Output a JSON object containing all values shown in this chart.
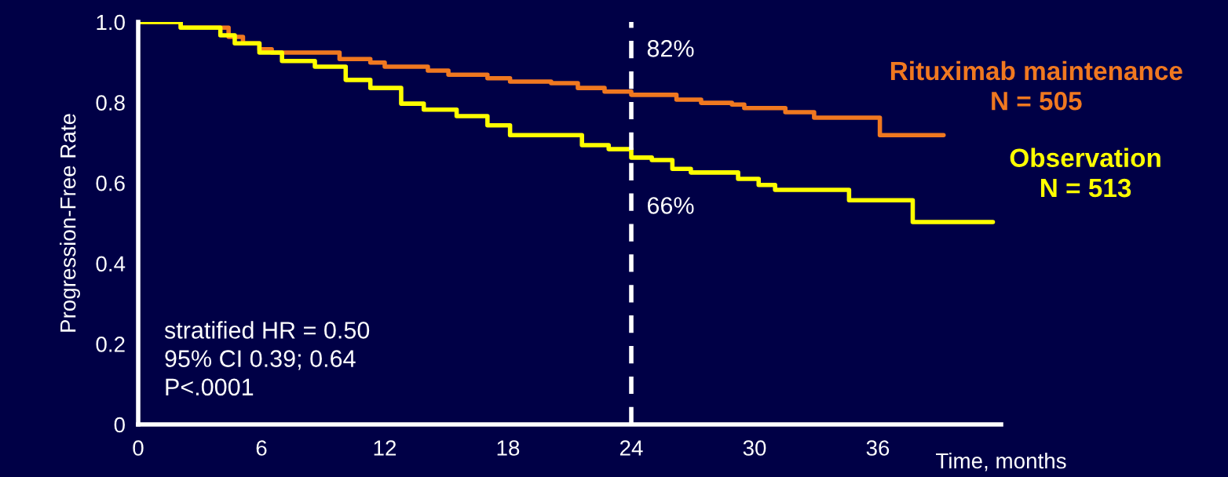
{
  "chart_data": {
    "type": "step",
    "xlabel": "Time, months",
    "ylabel": "Progression-Free Rate",
    "xlim": [
      0,
      42
    ],
    "xticks": [
      0,
      6,
      12,
      18,
      24,
      30,
      36
    ],
    "ylim": [
      0,
      1
    ],
    "yticks": [
      {
        "value": 0,
        "label": "0"
      },
      0.2,
      0.4,
      0.6,
      0.8,
      {
        "value": 1,
        "label": "1.0"
      }
    ],
    "grid": false,
    "legend": false,
    "series": [
      {
        "name": "Rituximab maintenance\nN = 505",
        "color": "#f07820",
        "x": [
          0,
          2.07,
          4.4,
          5.1,
          5.9,
          6.5,
          9.2,
          9.8,
          11.3,
          12.0,
          14.1,
          15.1,
          17.0,
          18.1,
          20.1,
          21.4,
          22.7,
          24.0,
          26.2,
          27.4,
          28.9,
          29.5,
          31.5,
          32.9,
          36.1,
          39.2
        ],
        "values": [
          1.0,
          0.986,
          0.963,
          0.947,
          0.932,
          0.924,
          0.924,
          0.908,
          0.899,
          0.889,
          0.879,
          0.869,
          0.86,
          0.852,
          0.848,
          0.836,
          0.827,
          0.819,
          0.807,
          0.799,
          0.795,
          0.786,
          0.776,
          0.762,
          0.719,
          0.719
        ]
      },
      {
        "name": "Observation\nN = 513",
        "color": "#ffff00",
        "x": [
          0,
          2.07,
          4.0,
          4.7,
          5.9,
          7.0,
          8.6,
          10.1,
          11.3,
          12.8,
          13.9,
          15.5,
          17.0,
          18.1,
          20.8,
          21.6,
          22.9,
          24.0,
          25.0,
          26.0,
          26.9,
          29.2,
          30.2,
          31.0,
          34.6,
          37.7,
          41.6
        ],
        "values": [
          1.0,
          0.986,
          0.967,
          0.947,
          0.924,
          0.903,
          0.889,
          0.856,
          0.836,
          0.797,
          0.782,
          0.766,
          0.743,
          0.719,
          0.719,
          0.694,
          0.684,
          0.663,
          0.657,
          0.635,
          0.626,
          0.61,
          0.595,
          0.583,
          0.557,
          0.503,
          0.503
        ]
      }
    ],
    "ref_lines": [
      {
        "axis": "x",
        "value": 24,
        "color": "#ffffff",
        "line_style": "dashed"
      }
    ],
    "annotations": [
      {
        "text": "82%",
        "x": 24,
        "y": 0.82
      },
      {
        "text": "66%",
        "x": 24,
        "y": 0.66
      },
      "stratified HR = 0.50\n95% CI 0.39; 0.64\nP<.0001"
    ]
  }
}
